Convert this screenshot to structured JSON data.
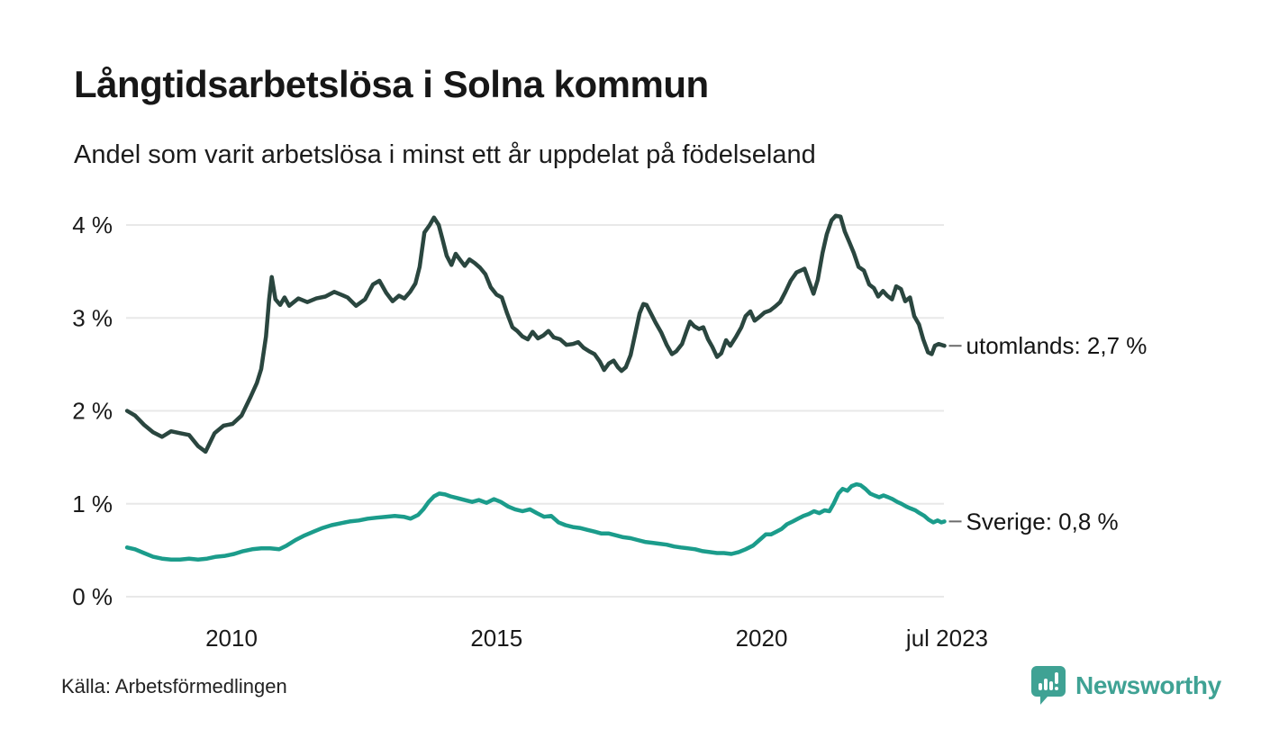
{
  "chart_data": {
    "type": "line",
    "title": "Långtidsarbetslösa i Solna kommun",
    "subtitle": "Andel som varit arbetslösa i minst ett år uppdelat på födelseland",
    "xlabel": "",
    "ylabel": "",
    "x_unit": "time, monthly observations jan 2008 - jul 2023",
    "y_unit": "percent",
    "xlim": [
      2008.0,
      2023.55
    ],
    "ylim": [
      0,
      4.3
    ],
    "grid": true,
    "legend_position": "end-of-line labels at right",
    "gridline_color": "#e8e8e8",
    "y_ticks": [
      {
        "value": 4,
        "label": "4 %"
      },
      {
        "value": 3,
        "label": "3 %"
      },
      {
        "value": 2,
        "label": "2 %"
      },
      {
        "value": 1,
        "label": "1 %"
      },
      {
        "value": 0,
        "label": "0 %"
      }
    ],
    "x_ticks": [
      {
        "year": 2010,
        "label": "2010"
      },
      {
        "year": 2015,
        "label": "2015"
      },
      {
        "year": 2020,
        "label": "2020"
      },
      {
        "year": 2023.5,
        "label": "jul 2023"
      }
    ],
    "series": [
      {
        "id": "utomlands",
        "name": "utomlands",
        "color": "#2a463f",
        "end_label": "utomlands: 2,7 %",
        "end_value": "2,7 %",
        "points": [
          [
            2008.03,
            2.0
          ],
          [
            2008.18,
            1.95
          ],
          [
            2008.35,
            1.85
          ],
          [
            2008.52,
            1.77
          ],
          [
            2008.69,
            1.72
          ],
          [
            2008.86,
            1.78
          ],
          [
            2009.03,
            1.76
          ],
          [
            2009.2,
            1.74
          ],
          [
            2009.37,
            1.62
          ],
          [
            2009.51,
            1.56
          ],
          [
            2009.68,
            1.76
          ],
          [
            2009.85,
            1.84
          ],
          [
            2010.02,
            1.86
          ],
          [
            2010.19,
            1.95
          ],
          [
            2010.36,
            2.15
          ],
          [
            2010.48,
            2.3
          ],
          [
            2010.56,
            2.45
          ],
          [
            2010.65,
            2.8
          ],
          [
            2010.71,
            3.2
          ],
          [
            2010.76,
            3.44
          ],
          [
            2010.83,
            3.2
          ],
          [
            2010.92,
            3.14
          ],
          [
            2011.0,
            3.22
          ],
          [
            2011.09,
            3.13
          ],
          [
            2011.26,
            3.21
          ],
          [
            2011.43,
            3.17
          ],
          [
            2011.6,
            3.21
          ],
          [
            2011.77,
            3.23
          ],
          [
            2011.94,
            3.28
          ],
          [
            2012.07,
            3.25
          ],
          [
            2012.19,
            3.22
          ],
          [
            2012.35,
            3.13
          ],
          [
            2012.52,
            3.2
          ],
          [
            2012.67,
            3.36
          ],
          [
            2012.79,
            3.4
          ],
          [
            2012.92,
            3.27
          ],
          [
            2013.04,
            3.18
          ],
          [
            2013.16,
            3.24
          ],
          [
            2013.26,
            3.21
          ],
          [
            2013.37,
            3.28
          ],
          [
            2013.47,
            3.37
          ],
          [
            2013.55,
            3.55
          ],
          [
            2013.64,
            3.92
          ],
          [
            2013.74,
            4.0
          ],
          [
            2013.82,
            4.08
          ],
          [
            2013.91,
            4.0
          ],
          [
            2013.98,
            3.85
          ],
          [
            2014.06,
            3.67
          ],
          [
            2014.15,
            3.57
          ],
          [
            2014.23,
            3.69
          ],
          [
            2014.32,
            3.62
          ],
          [
            2014.4,
            3.56
          ],
          [
            2014.49,
            3.63
          ],
          [
            2014.59,
            3.59
          ],
          [
            2014.69,
            3.54
          ],
          [
            2014.79,
            3.47
          ],
          [
            2014.89,
            3.33
          ],
          [
            2015.0,
            3.25
          ],
          [
            2015.1,
            3.22
          ],
          [
            2015.2,
            3.05
          ],
          [
            2015.3,
            2.9
          ],
          [
            2015.39,
            2.86
          ],
          [
            2015.49,
            2.8
          ],
          [
            2015.59,
            2.77
          ],
          [
            2015.68,
            2.85
          ],
          [
            2015.78,
            2.78
          ],
          [
            2015.88,
            2.81
          ],
          [
            2015.98,
            2.86
          ],
          [
            2016.08,
            2.79
          ],
          [
            2016.2,
            2.77
          ],
          [
            2016.32,
            2.71
          ],
          [
            2016.44,
            2.72
          ],
          [
            2016.54,
            2.74
          ],
          [
            2016.64,
            2.68
          ],
          [
            2016.75,
            2.64
          ],
          [
            2016.85,
            2.61
          ],
          [
            2016.95,
            2.53
          ],
          [
            2017.03,
            2.44
          ],
          [
            2017.12,
            2.51
          ],
          [
            2017.21,
            2.54
          ],
          [
            2017.29,
            2.47
          ],
          [
            2017.36,
            2.43
          ],
          [
            2017.44,
            2.47
          ],
          [
            2017.53,
            2.6
          ],
          [
            2017.61,
            2.81
          ],
          [
            2017.7,
            3.05
          ],
          [
            2017.77,
            3.15
          ],
          [
            2017.83,
            3.14
          ],
          [
            2017.92,
            3.04
          ],
          [
            2018.0,
            2.95
          ],
          [
            2018.11,
            2.84
          ],
          [
            2018.21,
            2.71
          ],
          [
            2018.31,
            2.61
          ],
          [
            2018.39,
            2.64
          ],
          [
            2018.5,
            2.72
          ],
          [
            2018.58,
            2.85
          ],
          [
            2018.65,
            2.96
          ],
          [
            2018.73,
            2.91
          ],
          [
            2018.82,
            2.88
          ],
          [
            2018.9,
            2.9
          ],
          [
            2018.99,
            2.77
          ],
          [
            2019.07,
            2.69
          ],
          [
            2019.16,
            2.58
          ],
          [
            2019.24,
            2.62
          ],
          [
            2019.33,
            2.76
          ],
          [
            2019.41,
            2.7
          ],
          [
            2019.52,
            2.8
          ],
          [
            2019.62,
            2.9
          ],
          [
            2019.7,
            3.02
          ],
          [
            2019.79,
            3.07
          ],
          [
            2019.87,
            2.97
          ],
          [
            2019.96,
            3.01
          ],
          [
            2020.06,
            3.06
          ],
          [
            2020.16,
            3.08
          ],
          [
            2020.25,
            3.12
          ],
          [
            2020.35,
            3.17
          ],
          [
            2020.45,
            3.28
          ],
          [
            2020.55,
            3.4
          ],
          [
            2020.66,
            3.49
          ],
          [
            2020.74,
            3.51
          ],
          [
            2020.81,
            3.53
          ],
          [
            2020.89,
            3.4
          ],
          [
            2020.98,
            3.26
          ],
          [
            2021.06,
            3.41
          ],
          [
            2021.15,
            3.7
          ],
          [
            2021.23,
            3.9
          ],
          [
            2021.32,
            4.05
          ],
          [
            2021.4,
            4.1
          ],
          [
            2021.49,
            4.09
          ],
          [
            2021.57,
            3.93
          ],
          [
            2021.66,
            3.81
          ],
          [
            2021.74,
            3.7
          ],
          [
            2021.83,
            3.55
          ],
          [
            2021.93,
            3.51
          ],
          [
            2022.03,
            3.36
          ],
          [
            2022.12,
            3.32
          ],
          [
            2022.2,
            3.23
          ],
          [
            2022.29,
            3.29
          ],
          [
            2022.37,
            3.24
          ],
          [
            2022.46,
            3.2
          ],
          [
            2022.54,
            3.34
          ],
          [
            2022.63,
            3.31
          ],
          [
            2022.71,
            3.18
          ],
          [
            2022.8,
            3.22
          ],
          [
            2022.88,
            3.02
          ],
          [
            2022.97,
            2.93
          ],
          [
            2023.05,
            2.77
          ],
          [
            2023.14,
            2.63
          ],
          [
            2023.21,
            2.61
          ],
          [
            2023.27,
            2.7
          ],
          [
            2023.34,
            2.72
          ],
          [
            2023.45,
            2.7
          ]
        ]
      },
      {
        "id": "sverige",
        "name": "Sverige",
        "color": "#1b9c8b",
        "end_label": "Sverige: 0,8 %",
        "end_value": "0,8 %",
        "points": [
          [
            2008.03,
            0.53
          ],
          [
            2008.18,
            0.51
          ],
          [
            2008.35,
            0.47
          ],
          [
            2008.52,
            0.43
          ],
          [
            2008.69,
            0.41
          ],
          [
            2008.86,
            0.4
          ],
          [
            2009.03,
            0.4
          ],
          [
            2009.2,
            0.41
          ],
          [
            2009.37,
            0.4
          ],
          [
            2009.54,
            0.41
          ],
          [
            2009.71,
            0.43
          ],
          [
            2009.88,
            0.44
          ],
          [
            2010.05,
            0.46
          ],
          [
            2010.22,
            0.49
          ],
          [
            2010.39,
            0.51
          ],
          [
            2010.56,
            0.52
          ],
          [
            2010.73,
            0.52
          ],
          [
            2010.9,
            0.51
          ],
          [
            2011.04,
            0.55
          ],
          [
            2011.21,
            0.61
          ],
          [
            2011.38,
            0.66
          ],
          [
            2011.55,
            0.7
          ],
          [
            2011.72,
            0.74
          ],
          [
            2011.89,
            0.77
          ],
          [
            2012.06,
            0.79
          ],
          [
            2012.23,
            0.81
          ],
          [
            2012.4,
            0.82
          ],
          [
            2012.57,
            0.84
          ],
          [
            2012.74,
            0.85
          ],
          [
            2012.91,
            0.86
          ],
          [
            2013.08,
            0.87
          ],
          [
            2013.25,
            0.86
          ],
          [
            2013.38,
            0.84
          ],
          [
            2013.52,
            0.88
          ],
          [
            2013.62,
            0.94
          ],
          [
            2013.72,
            1.02
          ],
          [
            2013.82,
            1.08
          ],
          [
            2013.92,
            1.11
          ],
          [
            2014.03,
            1.1
          ],
          [
            2014.13,
            1.08
          ],
          [
            2014.27,
            1.06
          ],
          [
            2014.4,
            1.04
          ],
          [
            2014.54,
            1.02
          ],
          [
            2014.67,
            1.04
          ],
          [
            2014.81,
            1.01
          ],
          [
            2014.95,
            1.05
          ],
          [
            2015.08,
            1.02
          ],
          [
            2015.22,
            0.97
          ],
          [
            2015.35,
            0.94
          ],
          [
            2015.49,
            0.92
          ],
          [
            2015.63,
            0.94
          ],
          [
            2015.76,
            0.9
          ],
          [
            2015.9,
            0.86
          ],
          [
            2016.03,
            0.87
          ],
          [
            2016.17,
            0.8
          ],
          [
            2016.3,
            0.77
          ],
          [
            2016.44,
            0.75
          ],
          [
            2016.57,
            0.74
          ],
          [
            2016.71,
            0.72
          ],
          [
            2016.85,
            0.7
          ],
          [
            2016.98,
            0.68
          ],
          [
            2017.12,
            0.68
          ],
          [
            2017.26,
            0.66
          ],
          [
            2017.39,
            0.64
          ],
          [
            2017.53,
            0.63
          ],
          [
            2017.66,
            0.61
          ],
          [
            2017.8,
            0.59
          ],
          [
            2017.94,
            0.58
          ],
          [
            2018.07,
            0.57
          ],
          [
            2018.21,
            0.56
          ],
          [
            2018.35,
            0.54
          ],
          [
            2018.48,
            0.53
          ],
          [
            2018.62,
            0.52
          ],
          [
            2018.75,
            0.51
          ],
          [
            2018.89,
            0.49
          ],
          [
            2019.02,
            0.48
          ],
          [
            2019.16,
            0.47
          ],
          [
            2019.29,
            0.47
          ],
          [
            2019.43,
            0.46
          ],
          [
            2019.57,
            0.48
          ],
          [
            2019.7,
            0.51
          ],
          [
            2019.84,
            0.55
          ],
          [
            2019.98,
            0.62
          ],
          [
            2020.08,
            0.67
          ],
          [
            2020.18,
            0.67
          ],
          [
            2020.28,
            0.7
          ],
          [
            2020.38,
            0.73
          ],
          [
            2020.48,
            0.78
          ],
          [
            2020.59,
            0.81
          ],
          [
            2020.69,
            0.84
          ],
          [
            2020.79,
            0.87
          ],
          [
            2020.89,
            0.89
          ],
          [
            2020.99,
            0.92
          ],
          [
            2021.09,
            0.9
          ],
          [
            2021.19,
            0.93
          ],
          [
            2021.28,
            0.92
          ],
          [
            2021.36,
            1.0
          ],
          [
            2021.45,
            1.11
          ],
          [
            2021.53,
            1.16
          ],
          [
            2021.62,
            1.14
          ],
          [
            2021.7,
            1.19
          ],
          [
            2021.79,
            1.21
          ],
          [
            2021.87,
            1.2
          ],
          [
            2021.96,
            1.16
          ],
          [
            2022.05,
            1.11
          ],
          [
            2022.13,
            1.09
          ],
          [
            2022.22,
            1.07
          ],
          [
            2022.3,
            1.09
          ],
          [
            2022.39,
            1.07
          ],
          [
            2022.47,
            1.05
          ],
          [
            2022.56,
            1.02
          ],
          [
            2022.64,
            1.0
          ],
          [
            2022.73,
            0.97
          ],
          [
            2022.81,
            0.95
          ],
          [
            2022.9,
            0.93
          ],
          [
            2022.98,
            0.9
          ],
          [
            2023.07,
            0.87
          ],
          [
            2023.15,
            0.83
          ],
          [
            2023.24,
            0.8
          ],
          [
            2023.32,
            0.82
          ],
          [
            2023.39,
            0.8
          ],
          [
            2023.45,
            0.81
          ]
        ]
      }
    ]
  },
  "footer": {
    "source": "Källa: Arbetsförmedlingen",
    "brand": "Newsworthy",
    "brand_color": "#3fa294"
  }
}
